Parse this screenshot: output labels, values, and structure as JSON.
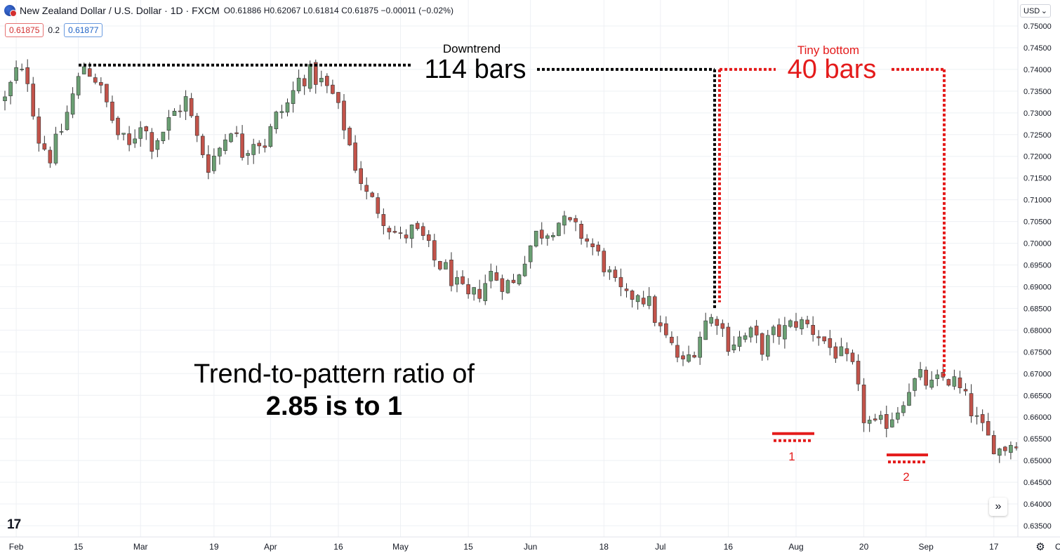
{
  "header": {
    "symbol": "New Zealand Dollar / U.S. Dollar · 1D · FXCM",
    "ohlc": "O0.61886 H0.62067 L0.61814 C0.61875 −0.00011 (−0.02%)",
    "sell_price": "0.61875",
    "spread": "0.2",
    "buy_price": "0.61877",
    "currency": "USD"
  },
  "icons": {
    "flag": "nzd-usd-flag-icon",
    "currency_dropdown": "chevron-down-icon",
    "scroll": "chevron-right-icon",
    "settings": "gear-icon",
    "logo": "tradingview-logo"
  },
  "logo_text": "17",
  "scroll_glyph": "»",
  "gear_glyph": "⚙",
  "dropdown_glyph": "⌄",
  "annotations": {
    "downtrend_label": "Downtrend",
    "downtrend_bars": "114 bars",
    "bottom_label": "Tiny bottom",
    "bottom_bars": "40 bars",
    "bottom_1": "1",
    "bottom_2": "2",
    "ratio_line1": "Trend-to-pattern ratio of",
    "ratio_line2": "2.85 is to 1"
  },
  "colors": {
    "up": "#6a9f73",
    "down": "#c2534a",
    "annotation_red": "#e41b1b",
    "annotation_black": "#000000",
    "grid": "#eef0f4",
    "axis_text": "#131722"
  },
  "chart_data": {
    "type": "candlestick",
    "symbol": "NZD/USD",
    "timeframe": "1D",
    "ylim": [
      0.634,
      0.754
    ],
    "y_ticks": [
      "0.75000",
      "0.74500",
      "0.74000",
      "0.73500",
      "0.73000",
      "0.72500",
      "0.72000",
      "0.71500",
      "0.71000",
      "0.70500",
      "0.70000",
      "0.69500",
      "0.69000",
      "0.68500",
      "0.68000",
      "0.67500",
      "0.67000",
      "0.66500",
      "0.66000",
      "0.65500",
      "0.65000",
      "0.64500",
      "0.64000",
      "0.63500"
    ],
    "x_ticks": [
      "Feb",
      "15",
      "Mar",
      "19",
      "Apr",
      "16",
      "May",
      "15",
      "Jun",
      "18",
      "Jul",
      "16",
      "Aug",
      "20",
      "Sep",
      "17",
      "Oct"
    ],
    "x_tick_index": [
      2,
      13,
      24,
      37,
      47,
      59,
      70,
      82,
      93,
      106,
      116,
      128,
      140,
      152,
      163,
      175,
      187
    ],
    "n_bars": 194,
    "waypoints": [
      [
        0,
        0.733
      ],
      [
        2,
        0.7395
      ],
      [
        4,
        0.738
      ],
      [
        6,
        0.724
      ],
      [
        8,
        0.72
      ],
      [
        10,
        0.726
      ],
      [
        12,
        0.734
      ],
      [
        14,
        0.741
      ],
      [
        16,
        0.738
      ],
      [
        18,
        0.732
      ],
      [
        20,
        0.725
      ],
      [
        22,
        0.722
      ],
      [
        24,
        0.728
      ],
      [
        26,
        0.723
      ],
      [
        28,
        0.726
      ],
      [
        30,
        0.73
      ],
      [
        32,
        0.733
      ],
      [
        34,
        0.724
      ],
      [
        36,
        0.718
      ],
      [
        38,
        0.722
      ],
      [
        40,
        0.727
      ],
      [
        42,
        0.721
      ],
      [
        44,
        0.724
      ],
      [
        46,
        0.723
      ],
      [
        48,
        0.729
      ],
      [
        50,
        0.732
      ],
      [
        52,
        0.7375
      ],
      [
        54,
        0.739
      ],
      [
        56,
        0.737
      ],
      [
        58,
        0.734
      ],
      [
        60,
        0.727
      ],
      [
        62,
        0.718
      ],
      [
        64,
        0.711
      ],
      [
        66,
        0.708
      ],
      [
        68,
        0.704
      ],
      [
        70,
        0.701
      ],
      [
        72,
        0.703
      ],
      [
        74,
        0.701
      ],
      [
        76,
        0.696
      ],
      [
        78,
        0.694
      ],
      [
        80,
        0.69
      ],
      [
        82,
        0.687
      ],
      [
        84,
        0.689
      ],
      [
        86,
        0.693
      ],
      [
        88,
        0.691
      ],
      [
        90,
        0.6905
      ],
      [
        92,
        0.697
      ],
      [
        94,
        0.702
      ],
      [
        96,
        0.703
      ],
      [
        98,
        0.705
      ],
      [
        100,
        0.704
      ],
      [
        102,
        0.702
      ],
      [
        104,
        0.699
      ],
      [
        106,
        0.695
      ],
      [
        108,
        0.69
      ],
      [
        110,
        0.687
      ],
      [
        112,
        0.689
      ],
      [
        114,
        0.686
      ],
      [
        116,
        0.68
      ],
      [
        118,
        0.676
      ],
      [
        120,
        0.672
      ],
      [
        122,
        0.676
      ],
      [
        124,
        0.682
      ],
      [
        126,
        0.683
      ],
      [
        128,
        0.677
      ],
      [
        130,
        0.678
      ],
      [
        132,
        0.679
      ],
      [
        134,
        0.676
      ],
      [
        136,
        0.679
      ],
      [
        138,
        0.68
      ],
      [
        140,
        0.682
      ],
      [
        142,
        0.681
      ],
      [
        144,
        0.679
      ],
      [
        146,
        0.676
      ],
      [
        148,
        0.674
      ],
      [
        150,
        0.671
      ],
      [
        152,
        0.66
      ],
      [
        154,
        0.6575
      ],
      [
        156,
        0.659
      ],
      [
        158,
        0.662
      ],
      [
        160,
        0.667
      ],
      [
        162,
        0.669
      ],
      [
        164,
        0.667
      ],
      [
        166,
        0.669
      ],
      [
        168,
        0.668
      ],
      [
        170,
        0.664
      ],
      [
        172,
        0.659
      ],
      [
        174,
        0.655
      ],
      [
        176,
        0.6525
      ],
      [
        178,
        0.654
      ],
      [
        180,
        0.656
      ],
      [
        182,
        0.6575
      ],
      [
        184,
        0.662
      ],
      [
        186,
        0.669
      ],
      [
        188,
        0.668
      ],
      [
        190,
        0.664
      ],
      [
        192,
        0.658
      ],
      [
        193,
        0.646
      ]
    ],
    "annotation_levels": {
      "downtrend_top": 0.741,
      "bottom_top": 0.74,
      "downtrend_end": 0.6848,
      "bottom_end": 0.6695,
      "low_1": 0.6562,
      "low_2": 0.6513
    }
  }
}
